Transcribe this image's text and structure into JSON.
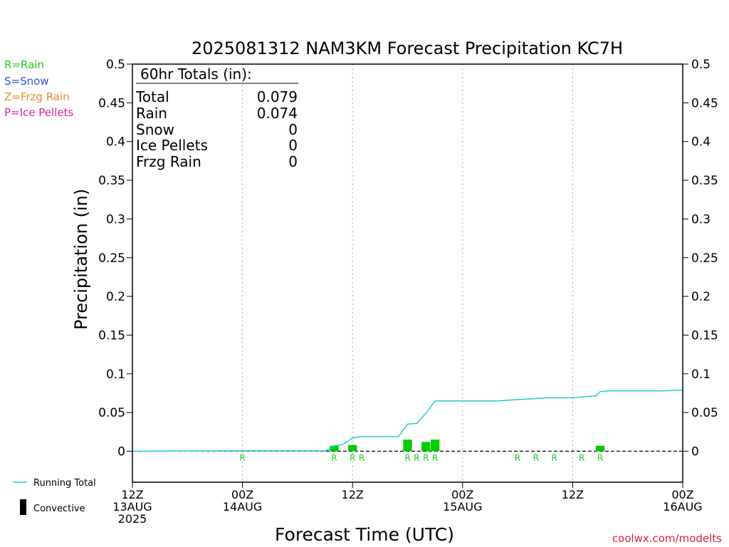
{
  "chart_data": {
    "type": "bar",
    "title": "2025081312 NAM3KM Forecast Precipitation KC7H",
    "xlabel": "Forecast Time (UTC)",
    "ylabel": "Precipitation (in)",
    "ylim": [
      -0.04,
      0.5
    ],
    "xlim_hours": [
      0,
      60
    ],
    "y_ticks": [
      0,
      0.05,
      0.1,
      0.15,
      0.2,
      0.25,
      0.3,
      0.35,
      0.4,
      0.45,
      0.5
    ],
    "y_tick_labels": [
      "0",
      "0.05",
      "0.1",
      "0.15",
      "0.2",
      "0.25",
      "0.3",
      "0.35",
      "0.4",
      "0.45",
      "0.5"
    ],
    "x_ticks": [
      {
        "hour": 0,
        "lines": [
          "12Z",
          "13AUG",
          "2025"
        ]
      },
      {
        "hour": 12,
        "lines": [
          "00Z",
          "14AUG"
        ]
      },
      {
        "hour": 24,
        "lines": [
          "12Z"
        ]
      },
      {
        "hour": 36,
        "lines": [
          "00Z",
          "15AUG"
        ]
      },
      {
        "hour": 48,
        "lines": [
          "12Z"
        ]
      },
      {
        "hour": 60,
        "lines": [
          "00Z",
          "16AUG"
        ]
      }
    ],
    "grid_hours": [
      12,
      24,
      36,
      48
    ],
    "legend_types": [
      {
        "label": "R=Rain",
        "color": "#22cc22"
      },
      {
        "label": "S=Snow",
        "color": "#3355dd"
      },
      {
        "label": "Z=Frzg Rain",
        "color": "#ee8833"
      },
      {
        "label": "P=Ice Pellets",
        "color": "#dd2299"
      }
    ],
    "legend_lines": [
      {
        "label": "Running Total",
        "color": "#22cccc",
        "kind": "line"
      },
      {
        "label": "Convective",
        "color": "#000000",
        "kind": "bar"
      }
    ],
    "totals": {
      "header": "60hr Totals (in):",
      "rows": [
        {
          "label": "Total",
          "value": "0.079"
        },
        {
          "label": "Rain",
          "value": "0.074"
        },
        {
          "label": "Snow",
          "value": "0"
        },
        {
          "label": "Ice Pellets",
          "value": "0"
        },
        {
          "label": "Frzg Rain",
          "value": "0"
        }
      ]
    },
    "bars": [
      {
        "hour": 22,
        "value": 0.007
      },
      {
        "hour": 24,
        "value": 0.008
      },
      {
        "hour": 30,
        "value": 0.015
      },
      {
        "hour": 32,
        "value": 0.012
      },
      {
        "hour": 33,
        "value": 0.015
      },
      {
        "hour": 51,
        "value": 0.007
      }
    ],
    "bar_color": "#00cc00",
    "type_markers": [
      {
        "hour": 12,
        "label": "R"
      },
      {
        "hour": 22,
        "label": "R"
      },
      {
        "hour": 24,
        "label": "R"
      },
      {
        "hour": 25,
        "label": "R"
      },
      {
        "hour": 30,
        "label": "R"
      },
      {
        "hour": 31,
        "label": "R"
      },
      {
        "hour": 32,
        "label": "R"
      },
      {
        "hour": 33,
        "label": "R"
      },
      {
        "hour": 42,
        "label": "R"
      },
      {
        "hour": 44,
        "label": "R"
      },
      {
        "hour": 46,
        "label": "R"
      },
      {
        "hour": 49,
        "label": "R"
      },
      {
        "hour": 51,
        "label": "R"
      }
    ],
    "running_total": {
      "name": "Running Total",
      "color": "#22cccc",
      "x": [
        0,
        12,
        21,
        21.5,
        22,
        23,
        24,
        25,
        29,
        30,
        31,
        32,
        33,
        40,
        41,
        44,
        45,
        47,
        48,
        49,
        50,
        50.5,
        51,
        52,
        55,
        58,
        60
      ],
      "y": [
        0,
        0.0005,
        0.0005,
        0.003,
        0.007,
        0.009,
        0.017,
        0.019,
        0.019,
        0.035,
        0.036,
        0.049,
        0.065,
        0.065,
        0.066,
        0.068,
        0.069,
        0.069,
        0.069,
        0.07,
        0.071,
        0.071,
        0.077,
        0.078,
        0.078,
        0.078,
        0.079
      ]
    },
    "credit": "coolwx.com/modelts"
  }
}
